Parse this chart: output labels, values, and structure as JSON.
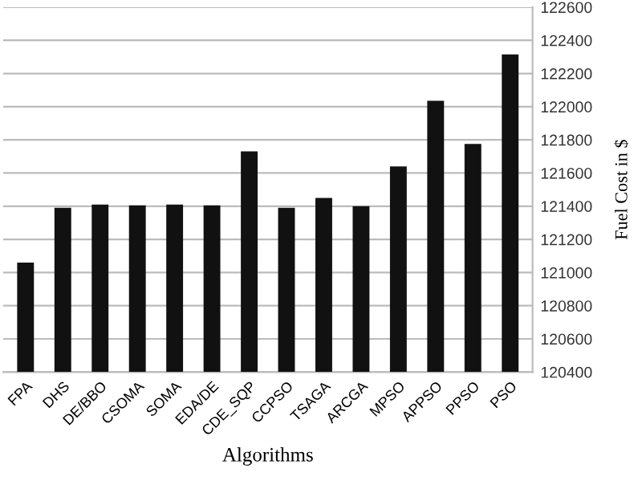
{
  "chart_data": {
    "type": "bar",
    "xlabel": "Algorithms",
    "ylabel": "Fuel Cost in $",
    "categories": [
      "FPA",
      "DHS",
      "DE/BBO",
      "CSOMA",
      "SOMA",
      "EDA/DE",
      "CDE_SQP",
      "CCPSO",
      "TSAGA",
      "ARCGA",
      "MPSO",
      "APPSO",
      "PPSO",
      "PSO"
    ],
    "values": [
      121060,
      121390,
      121410,
      121405,
      121410,
      121405,
      121730,
      121390,
      121450,
      121400,
      121640,
      122035,
      121775,
      122315
    ],
    "color": "#111111",
    "ylim": [
      120400,
      122600
    ],
    "yticks": [
      120400,
      120600,
      120800,
      121000,
      121200,
      121400,
      121600,
      121800,
      122000,
      122200,
      122400,
      122600
    ],
    "grid": "y",
    "legend": false
  }
}
